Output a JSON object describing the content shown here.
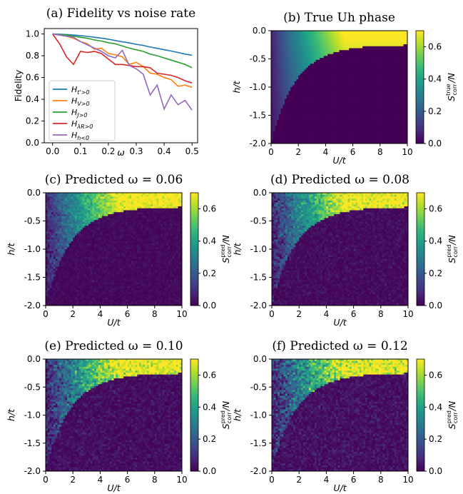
{
  "colors": {
    "viridis": [
      "#440154",
      "#482878",
      "#3e4989",
      "#31688e",
      "#26828e",
      "#1f9e89",
      "#35b779",
      "#6ece58",
      "#b5de2b",
      "#fde725"
    ],
    "axis": "#000000",
    "background": "#ffffff"
  },
  "chart_data": [
    {
      "type": "line",
      "title": "(a) Fidelity vs noise rate",
      "xlabel": "ω",
      "ylabel": "Fidelity",
      "xlim": [
        -0.03,
        0.52
      ],
      "ylim": [
        0.0,
        1.05
      ],
      "xticks": [
        "0.0",
        "0.1",
        "0.2",
        "0.3",
        "0.4",
        "0.5"
      ],
      "yticks": [
        "0.0",
        "0.2",
        "0.4",
        "0.6",
        "0.8",
        "1.0"
      ],
      "legend_position": "center-left",
      "x": [
        0.0,
        0.025,
        0.05,
        0.075,
        0.1,
        0.125,
        0.15,
        0.175,
        0.2,
        0.225,
        0.25,
        0.275,
        0.3,
        0.325,
        0.35,
        0.375,
        0.4,
        0.425,
        0.45,
        0.475,
        0.5
      ],
      "series": [
        {
          "name": "H_{t'>0}",
          "color": "#1f77b4",
          "values": [
            1.0,
            0.998,
            0.995,
            0.99,
            0.985,
            0.978,
            0.97,
            0.962,
            0.952,
            0.94,
            0.928,
            0.918,
            0.905,
            0.895,
            0.88,
            0.868,
            0.855,
            0.843,
            0.83,
            0.815,
            0.805
          ]
        },
        {
          "name": "H_{V>0}",
          "color": "#ff7f0e",
          "values": [
            1.0,
            0.99,
            0.98,
            0.96,
            0.93,
            0.91,
            0.86,
            0.87,
            0.82,
            0.81,
            0.79,
            0.72,
            0.74,
            0.7,
            0.64,
            0.63,
            0.6,
            0.58,
            0.52,
            0.53,
            0.51
          ]
        },
        {
          "name": "H_{J>0}",
          "color": "#2ca02c",
          "values": [
            1.0,
            0.995,
            0.99,
            0.98,
            0.97,
            0.96,
            0.945,
            0.935,
            0.92,
            0.91,
            0.89,
            0.87,
            0.855,
            0.84,
            0.815,
            0.8,
            0.78,
            0.76,
            0.74,
            0.72,
            0.69
          ]
        },
        {
          "name": "H_{λ_R>0}",
          "color": "#d62728",
          "values": [
            1.0,
            0.91,
            0.79,
            0.72,
            0.84,
            0.83,
            0.84,
            0.82,
            0.77,
            0.72,
            0.72,
            0.71,
            0.7,
            0.7,
            0.69,
            0.64,
            0.63,
            0.62,
            0.6,
            0.57,
            0.55
          ]
        },
        {
          "name": "H_{h<0}",
          "color": "#9467bd",
          "values": [
            1.0,
            0.99,
            0.98,
            0.97,
            0.93,
            0.9,
            0.87,
            0.84,
            0.8,
            0.78,
            0.85,
            0.71,
            0.68,
            0.63,
            0.44,
            0.53,
            0.31,
            0.44,
            0.35,
            0.39,
            0.3
          ]
        }
      ]
    },
    {
      "type": "heatmap",
      "title": "(b) True Uh phase",
      "xlabel": "U/t",
      "ylabel": "h/t",
      "xlim": [
        0,
        10
      ],
      "ylim": [
        -2.0,
        0.0
      ],
      "xticks": [
        "0",
        "2",
        "4",
        "6",
        "8",
        "10"
      ],
      "yticks": [
        "0.0",
        "-0.5",
        "-1.0",
        "-1.5",
        "-2.0"
      ],
      "colorbar_label": "S_corr^true/N",
      "colorbar_range": [
        0.0,
        0.7
      ],
      "colorbar_ticks": [
        "0.0",
        "0.2",
        "0.4",
        "0.6"
      ],
      "noise": 0.0
    },
    {
      "type": "heatmap",
      "title": "(c) Predicted ω = 0.06",
      "xlabel": "U/t",
      "ylabel": "h/t",
      "xlim": [
        0,
        10
      ],
      "ylim": [
        -2.0,
        0.0
      ],
      "xticks": [
        "0",
        "2",
        "4",
        "6",
        "8",
        "10"
      ],
      "yticks": [
        "0.0",
        "-0.5",
        "-1.0",
        "-1.5",
        "-2.0"
      ],
      "colorbar_label": "S_corr^pred/N",
      "colorbar_range": [
        0.0,
        0.7
      ],
      "colorbar_ticks": [
        "0.0",
        "0.2",
        "0.4",
        "0.6"
      ],
      "noise": 0.06
    },
    {
      "type": "heatmap",
      "title": "(d) Predicted ω = 0.08",
      "xlabel": "U/t",
      "ylabel": "h/t",
      "xlim": [
        0,
        10
      ],
      "ylim": [
        -2.0,
        0.0
      ],
      "xticks": [
        "0",
        "2",
        "4",
        "6",
        "8",
        "10"
      ],
      "yticks": [
        "0.0",
        "-0.5",
        "-1.0",
        "-1.5",
        "-2.0"
      ],
      "colorbar_label": "S_corr^pred/N",
      "colorbar_range": [
        0.0,
        0.7
      ],
      "colorbar_ticks": [
        "0.0",
        "0.2",
        "0.4",
        "0.6"
      ],
      "noise": 0.08
    },
    {
      "type": "heatmap",
      "title": "(e) Predicted ω = 0.10",
      "xlabel": "U/t",
      "ylabel": "h/t",
      "xlim": [
        0,
        10
      ],
      "ylim": [
        -2.0,
        0.0
      ],
      "xticks": [
        "0",
        "2",
        "4",
        "6",
        "8",
        "10"
      ],
      "yticks": [
        "0.0",
        "-0.5",
        "-1.0",
        "-1.5",
        "-2.0"
      ],
      "colorbar_label": "S_corr^pred/N",
      "colorbar_range": [
        0.0,
        0.7
      ],
      "colorbar_ticks": [
        "0.0",
        "0.2",
        "0.4",
        "0.6"
      ],
      "noise": 0.1
    },
    {
      "type": "heatmap",
      "title": "(f) Predicted ω = 0.12",
      "xlabel": "U/t",
      "ylabel": "h/t",
      "xlim": [
        0,
        10
      ],
      "ylim": [
        -2.0,
        0.0
      ],
      "xticks": [
        "0",
        "2",
        "4",
        "6",
        "8",
        "10"
      ],
      "yticks": [
        "0.0",
        "-0.5",
        "-1.0",
        "-1.5",
        "-2.0"
      ],
      "colorbar_label": "S_corr^pred/N",
      "colorbar_range": [
        0.0,
        0.7
      ],
      "colorbar_ticks": [
        "0.0",
        "0.2",
        "0.4",
        "0.6"
      ],
      "noise": 0.12
    }
  ]
}
